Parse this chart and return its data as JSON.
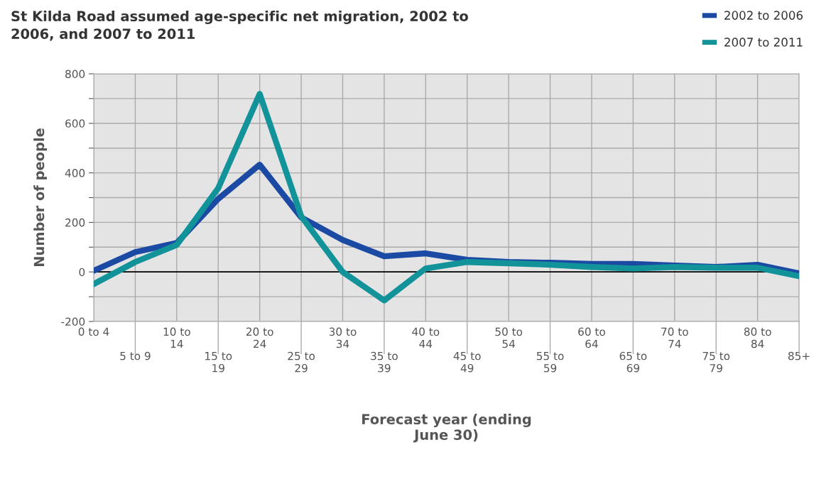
{
  "chart_data": {
    "type": "line",
    "title": "St Kilda Road assumed age-specific net migration, 2002 to 2006, and 2007 to 2011",
    "xlabel": "Forecast year (ending June 30)",
    "ylabel": "Number of people",
    "categories": [
      "0 to 4",
      "5 to 9",
      "10 to 14",
      "15 to 19",
      "20 to 24",
      "25 to 29",
      "30 to 34",
      "35 to 39",
      "40 to 44",
      "45 to 49",
      "50 to 54",
      "55 to 59",
      "60 to 64",
      "65 to 69",
      "70 to 74",
      "75 to 79",
      "80 to 84",
      "85+"
    ],
    "series": [
      {
        "name": "2002 to 2006",
        "color": "#1a4aa3",
        "values": [
          5,
          80,
          117,
          295,
          433,
          220,
          129,
          63,
          75,
          49,
          40,
          37,
          32,
          32,
          26,
          20,
          29,
          -6
        ]
      },
      {
        "name": "2007 to 2011",
        "color": "#12939a",
        "values": [
          -49,
          40,
          109,
          338,
          719,
          225,
          0,
          -115,
          14,
          40,
          35,
          29,
          20,
          14,
          20,
          17,
          17,
          -17
        ]
      }
    ],
    "ylim": [
      -200,
      800
    ],
    "yticks": [
      -200,
      {
        "value": -100,
        "label": null
      },
      0,
      {
        "value": 100,
        "label": null
      },
      200,
      {
        "value": 300,
        "label": null
      },
      400,
      {
        "value": 500,
        "label": null
      },
      600,
      {
        "value": 700,
        "label": null
      },
      800
    ],
    "ref_lines": [
      {
        "axis": "y",
        "value": 0,
        "label": null,
        "color": "#000000"
      }
    ],
    "grid": true,
    "legend": "top right",
    "marker": "none",
    "line_style": "solid"
  }
}
